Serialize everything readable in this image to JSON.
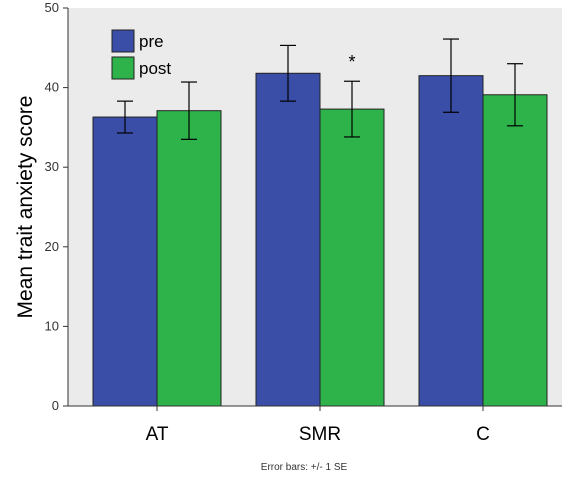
{
  "chart_data": {
    "type": "bar",
    "title": "",
    "xlabel": "",
    "ylabel": "Mean trait anxiety score",
    "ylim": [
      0,
      50
    ],
    "yticks": [
      0,
      10,
      20,
      30,
      40,
      50
    ],
    "grid": false,
    "legend_position": "top-left",
    "categories": [
      "AT",
      "SMR",
      "C"
    ],
    "series": [
      {
        "name": "pre",
        "color": "#3a4ea8",
        "values": [
          36.3,
          41.8,
          41.5
        ],
        "se": [
          2.0,
          3.5,
          4.6
        ]
      },
      {
        "name": "post",
        "color": "#2db34a",
        "values": [
          37.1,
          37.3,
          39.1
        ],
        "se": [
          3.6,
          3.5,
          3.9
        ]
      }
    ],
    "annotations": [
      {
        "text": "*",
        "category": "SMR",
        "series": "post"
      }
    ],
    "footnote": "Error bars: +/- 1 SE",
    "plot_background": "#ebebeb"
  }
}
